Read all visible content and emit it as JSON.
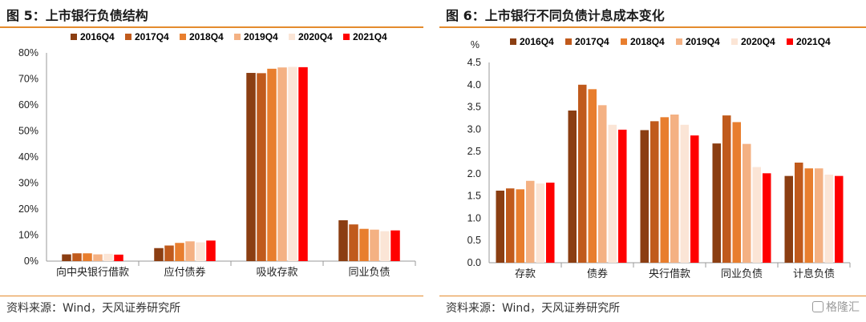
{
  "left": {
    "title": "图 5：上市银行负债结构",
    "source": "资料来源：Wind，天风证券研究所"
  },
  "right": {
    "title": "图 6：上市银行不同负债计息成本变化",
    "source": "资料来源：Wind，天风证券研究所",
    "watermark": "格隆汇"
  },
  "chart_data": [
    {
      "type": "bar",
      "title": "图 5：上市银行负债结构",
      "categories": [
        "向中央银行借款",
        "应付债券",
        "吸收存款",
        "同业负债"
      ],
      "series": [
        {
          "name": "2016Q4",
          "color": "#8b3e12",
          "values": [
            2.6,
            5.0,
            72.3,
            15.7
          ]
        },
        {
          "name": "2017Q4",
          "color": "#c05a1c",
          "values": [
            3.0,
            6.0,
            72.2,
            14.1
          ]
        },
        {
          "name": "2018Q4",
          "color": "#e87e2e",
          "values": [
            3.0,
            7.0,
            73.9,
            12.4
          ]
        },
        {
          "name": "2019Q4",
          "color": "#f4b183",
          "values": [
            2.6,
            7.6,
            74.4,
            12.1
          ]
        },
        {
          "name": "2020Q4",
          "color": "#fbe5d6",
          "values": [
            2.8,
            7.2,
            74.6,
            11.5
          ]
        },
        {
          "name": "2021Q4",
          "color": "#ff0000",
          "values": [
            2.5,
            7.9,
            74.5,
            11.8
          ]
        }
      ],
      "ylim": [
        0,
        80
      ],
      "yticks": [
        0,
        10,
        20,
        30,
        40,
        50,
        60,
        70,
        80
      ],
      "ytick_format": "percent",
      "ylabel": "",
      "legend": "top"
    },
    {
      "type": "bar",
      "title": "图 6：上市银行不同负债计息成本变化",
      "categories": [
        "存款",
        "债券",
        "央行借款",
        "同业负债",
        "计息负债"
      ],
      "series": [
        {
          "name": "2016Q4",
          "color": "#8b3e12",
          "values": [
            1.62,
            3.42,
            2.98,
            2.68,
            1.95
          ]
        },
        {
          "name": "2017Q4",
          "color": "#c05a1c",
          "values": [
            1.67,
            4.0,
            3.18,
            3.31,
            2.25
          ]
        },
        {
          "name": "2018Q4",
          "color": "#e87e2e",
          "values": [
            1.65,
            3.9,
            3.27,
            3.16,
            2.12
          ]
        },
        {
          "name": "2019Q4",
          "color": "#f4b183",
          "values": [
            1.84,
            3.54,
            3.33,
            2.67,
            2.12
          ]
        },
        {
          "name": "2020Q4",
          "color": "#fbe5d6",
          "values": [
            1.78,
            3.1,
            3.1,
            2.15,
            1.98
          ]
        },
        {
          "name": "2021Q4",
          "color": "#ff0000",
          "values": [
            1.8,
            2.99,
            2.86,
            2.01,
            1.95
          ]
        }
      ],
      "ylim": [
        0,
        4.5
      ],
      "yticks": [
        0.0,
        0.5,
        1.0,
        1.5,
        2.0,
        2.5,
        3.0,
        3.5,
        4.0,
        4.5
      ],
      "ytick_format": "fixed1",
      "ylabel": "%",
      "legend": "top"
    }
  ]
}
